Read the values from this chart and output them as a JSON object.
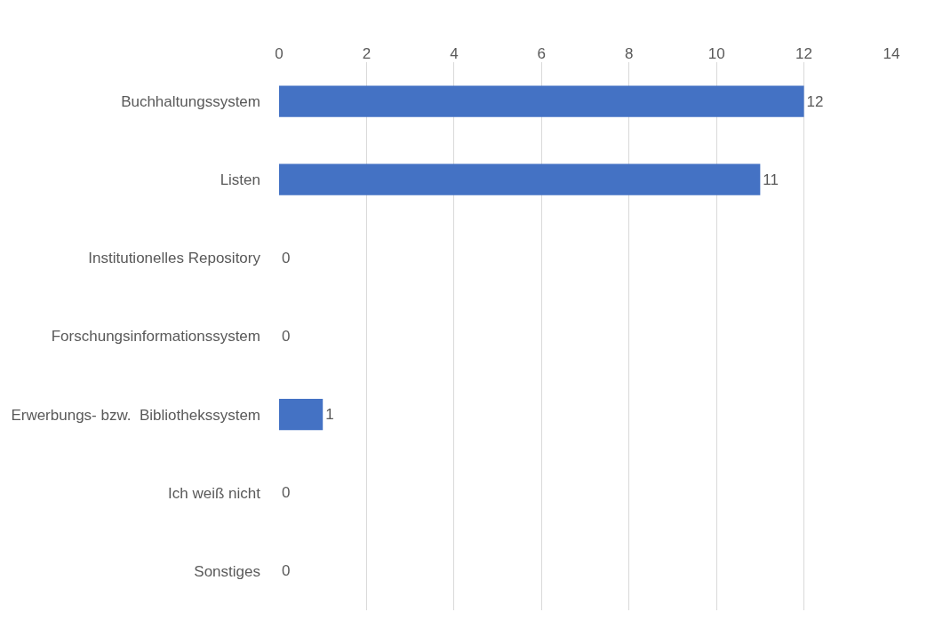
{
  "chart_data": {
    "type": "bar",
    "orientation": "horizontal",
    "categories": [
      "Buchhaltungssystem",
      "Listen",
      "Institutionelles Repository",
      "Forschungsinformationssystem",
      "Erwerbungs- bzw.  Bibliothekssystem",
      "Ich weiß nicht",
      "Sonstiges"
    ],
    "values": [
      12,
      11,
      0,
      0,
      1,
      0,
      0
    ],
    "color": "#4472c4",
    "xlim": [
      0,
      14
    ],
    "xticks": [
      0,
      2,
      4,
      6,
      8,
      10,
      12,
      14
    ],
    "grid": "x",
    "data_labels": true
  }
}
